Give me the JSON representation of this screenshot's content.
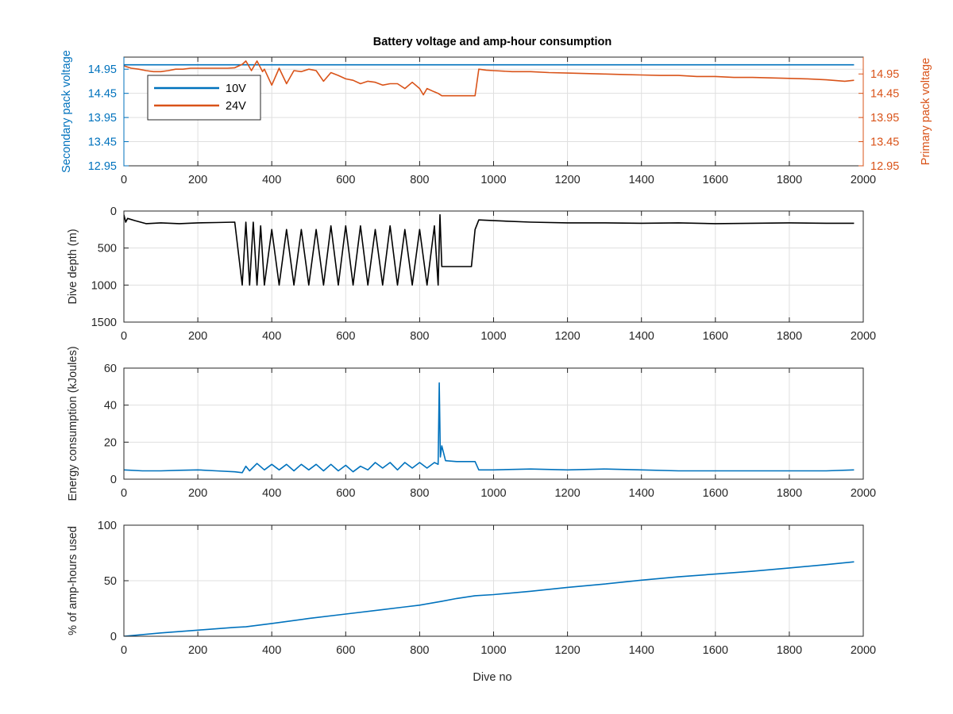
{
  "figure": {
    "title": "Battery voltage and amp-hour consumption",
    "xlabel": "Dive no"
  },
  "colors": {
    "blue": "#0072BD",
    "orange": "#D95319",
    "black": "#000000",
    "axis": "#262626",
    "grid": "#DFDFDF"
  },
  "chart_data": [
    {
      "type": "line",
      "title": "Battery voltage and amp-hour consumption",
      "xlabel": "",
      "ylabel_left": "Secondary pack voltage",
      "ylabel_right": "Primary pack voltage",
      "xlim": [
        0,
        2000
      ],
      "ylim": [
        12.95,
        15.2
      ],
      "xticks": [
        0,
        200,
        400,
        600,
        800,
        1000,
        1200,
        1400,
        1600,
        1800,
        2000
      ],
      "yticks": [
        12.95,
        13.45,
        13.95,
        14.45,
        14.95
      ],
      "ytick_labels": [
        "12.95",
        "13.45",
        "13.95",
        "14.45",
        "14.95"
      ],
      "grid": true,
      "legend": {
        "position": "top-left",
        "entries": [
          "10V",
          "24V"
        ]
      },
      "series": [
        {
          "name": "10V",
          "axis": "left",
          "color": "#0072BD",
          "x": [
            0,
            1975
          ],
          "y": [
            15.04,
            15.04
          ]
        },
        {
          "name": "24V",
          "axis": "right",
          "color": "#D95319",
          "x": [
            0,
            20,
            40,
            60,
            80,
            100,
            120,
            140,
            160,
            180,
            200,
            220,
            240,
            260,
            280,
            300,
            320,
            330,
            345,
            360,
            375,
            380,
            400,
            420,
            440,
            460,
            480,
            500,
            520,
            540,
            560,
            580,
            600,
            620,
            640,
            660,
            680,
            700,
            720,
            740,
            760,
            780,
            800,
            810,
            820,
            840,
            850,
            860,
            880,
            900,
            920,
            940,
            950,
            960,
            980,
            1000,
            1050,
            1100,
            1150,
            1200,
            1250,
            1300,
            1350,
            1400,
            1450,
            1500,
            1550,
            1600,
            1650,
            1700,
            1750,
            1800,
            1850,
            1900,
            1950,
            1975
          ],
          "y": [
            15.02,
            14.97,
            14.95,
            14.92,
            14.9,
            14.9,
            14.92,
            14.95,
            14.95,
            14.97,
            14.97,
            14.97,
            14.97,
            14.97,
            14.97,
            14.98,
            15.05,
            15.12,
            14.92,
            15.12,
            14.9,
            14.95,
            14.62,
            14.97,
            14.65,
            14.92,
            14.9,
            14.95,
            14.92,
            14.7,
            14.88,
            14.82,
            14.75,
            14.72,
            14.65,
            14.7,
            14.68,
            14.62,
            14.65,
            14.65,
            14.55,
            14.68,
            14.55,
            14.42,
            14.55,
            14.48,
            14.45,
            14.4,
            14.4,
            14.4,
            14.4,
            14.4,
            14.4,
            14.95,
            14.93,
            14.92,
            14.9,
            14.9,
            14.88,
            14.87,
            14.86,
            14.85,
            14.84,
            14.83,
            14.82,
            14.82,
            14.8,
            14.8,
            14.78,
            14.78,
            14.77,
            14.76,
            14.75,
            14.73,
            14.7,
            14.72
          ]
        }
      ]
    },
    {
      "type": "line",
      "xlabel": "",
      "ylabel": "Dive depth (m)",
      "xlim": [
        0,
        2000
      ],
      "ylim": [
        1500,
        0
      ],
      "xticks": [
        0,
        200,
        400,
        600,
        800,
        1000,
        1200,
        1400,
        1600,
        1800,
        2000
      ],
      "yticks": [
        0,
        500,
        1000,
        1500
      ],
      "grid": true,
      "series": [
        {
          "color": "#000000",
          "x": [
            0,
            5,
            10,
            30,
            60,
            100,
            150,
            200,
            250,
            300,
            320,
            330,
            340,
            350,
            360,
            370,
            380,
            400,
            420,
            440,
            460,
            480,
            500,
            520,
            540,
            560,
            580,
            600,
            620,
            640,
            660,
            680,
            700,
            720,
            740,
            760,
            780,
            800,
            820,
            840,
            850,
            855,
            860,
            880,
            900,
            940,
            950,
            960,
            1000,
            1100,
            1200,
            1300,
            1400,
            1500,
            1600,
            1700,
            1800,
            1900,
            1975
          ],
          "y": [
            50,
            150,
            100,
            130,
            170,
            160,
            170,
            160,
            155,
            150,
            1000,
            150,
            1000,
            150,
            1000,
            200,
            1000,
            250,
            1000,
            250,
            1000,
            250,
            1000,
            250,
            1000,
            200,
            1000,
            200,
            1000,
            200,
            1000,
            250,
            1000,
            200,
            1000,
            250,
            1000,
            250,
            1000,
            200,
            1000,
            50,
            750,
            750,
            750,
            750,
            250,
            120,
            130,
            150,
            160,
            160,
            165,
            160,
            170,
            165,
            160,
            165,
            165
          ]
        }
      ]
    },
    {
      "type": "line",
      "xlabel": "",
      "ylabel": "Energy consumption (kJoules)",
      "xlim": [
        0,
        2000
      ],
      "ylim": [
        0,
        60
      ],
      "xticks": [
        0,
        200,
        400,
        600,
        800,
        1000,
        1200,
        1400,
        1600,
        1800,
        2000
      ],
      "yticks": [
        0,
        20,
        40,
        60
      ],
      "grid": true,
      "series": [
        {
          "color": "#0072BD",
          "x": [
            0,
            50,
            100,
            150,
            200,
            250,
            300,
            320,
            330,
            340,
            360,
            380,
            400,
            420,
            440,
            460,
            480,
            500,
            520,
            540,
            560,
            580,
            600,
            620,
            640,
            660,
            680,
            700,
            720,
            740,
            760,
            780,
            800,
            820,
            840,
            850,
            853,
            856,
            860,
            870,
            900,
            940,
            950,
            960,
            1000,
            1100,
            1200,
            1300,
            1400,
            1500,
            1600,
            1700,
            1800,
            1900,
            1975
          ],
          "y": [
            5,
            4.5,
            4.5,
            4.8,
            5,
            4.5,
            4,
            3.5,
            7,
            4.5,
            8.5,
            5,
            8,
            5,
            8,
            4.5,
            8,
            5,
            8,
            4.5,
            8,
            4.5,
            7.5,
            4,
            7,
            5,
            9,
            6,
            9,
            5,
            9,
            6,
            9,
            6,
            9,
            8,
            52,
            12,
            18,
            10,
            9.5,
            9.5,
            9.5,
            5,
            5,
            5.5,
            5,
            5.5,
            5,
            4.5,
            4.5,
            4.5,
            4.5,
            4.5,
            5
          ]
        }
      ]
    },
    {
      "type": "line",
      "xlabel": "Dive no",
      "ylabel": "% of amp-hours used",
      "xlim": [
        0,
        2000
      ],
      "ylim": [
        0,
        100
      ],
      "xticks": [
        0,
        200,
        400,
        600,
        800,
        1000,
        1200,
        1400,
        1600,
        1800,
        2000
      ],
      "yticks": [
        0,
        50,
        100
      ],
      "grid": true,
      "series": [
        {
          "color": "#0072BD",
          "x": [
            0,
            100,
            200,
            300,
            330,
            400,
            500,
            600,
            700,
            800,
            860,
            900,
            950,
            1000,
            1100,
            1200,
            1300,
            1400,
            1500,
            1600,
            1700,
            1800,
            1900,
            1975
          ],
          "y": [
            0,
            3,
            5.5,
            8,
            8.5,
            11.5,
            16,
            20,
            24,
            28,
            31.5,
            34,
            36.5,
            37.5,
            40.5,
            44,
            47,
            50.5,
            53.5,
            56,
            58.5,
            61.5,
            64.5,
            67
          ]
        }
      ]
    }
  ]
}
